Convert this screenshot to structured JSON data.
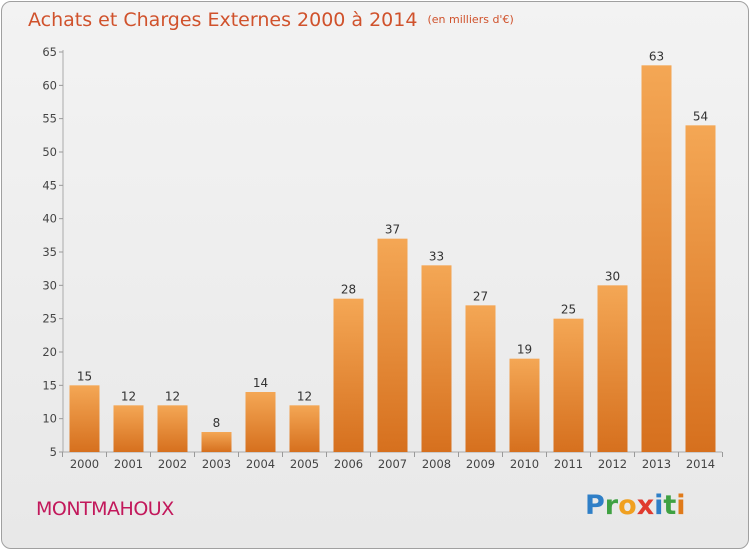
{
  "header": {
    "title": "Achats et Charges Externes 2000 à 2014",
    "unit": "(en milliers d'€)"
  },
  "footer": {
    "commune": "MONTMAHOUX",
    "logo_letters": [
      "P",
      "r",
      "o",
      "x",
      "i",
      "t",
      "i"
    ],
    "logo_colors": [
      "#2f7fc7",
      "#3fa142",
      "#f0a020",
      "#e03a2e",
      "#2f7fc7",
      "#3fa142",
      "#e07a1a"
    ]
  },
  "colors": {
    "bar_light": "#f4a755",
    "bar_dark": "#d6701e",
    "title": "#d0522c",
    "commune": "#c2185b"
  },
  "chart_data": {
    "type": "bar",
    "title": "Achats et Charges Externes 2000 à 2014",
    "categories": [
      "2000",
      "2001",
      "2002",
      "2003",
      "2004",
      "2005",
      "2006",
      "2007",
      "2008",
      "2009",
      "2010",
      "2011",
      "2012",
      "2013",
      "2014"
    ],
    "values": [
      15,
      12,
      12,
      8,
      14,
      12,
      28,
      37,
      33,
      27,
      19,
      25,
      30,
      63,
      54
    ],
    "ylim": [
      5,
      65
    ],
    "yticks": [
      5,
      10,
      15,
      20,
      25,
      30,
      35,
      40,
      45,
      50,
      55,
      60,
      65
    ],
    "grid": false,
    "data_labels": true
  }
}
